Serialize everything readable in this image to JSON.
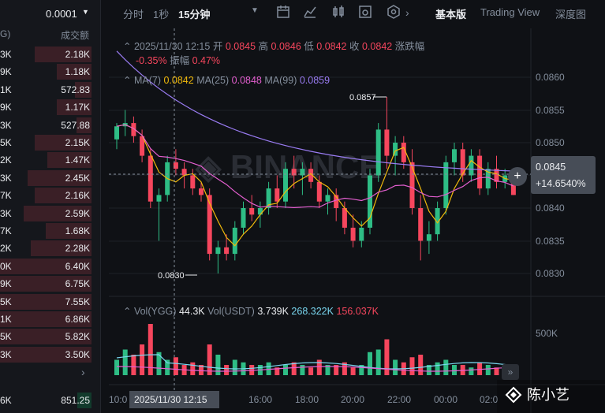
{
  "orderbook": {
    "precision": "0.0001",
    "col_price_partial": "G)",
    "col_volume": "成交额",
    "rows": [
      {
        "p": "3K",
        "q": "2.18K",
        "w": 0.62
      },
      {
        "p": "9K",
        "q": "1.18K",
        "w": 0.38
      },
      {
        "p": "1K",
        "q": "572.83",
        "w": 0.18
      },
      {
        "p": "9K",
        "q": "1.17K",
        "w": 0.38
      },
      {
        "p": "3K",
        "q": "527.88",
        "w": 0.16
      },
      {
        "p": "5K",
        "q": "2.15K",
        "w": 0.62
      },
      {
        "p": "2K",
        "q": "1.47K",
        "w": 0.48
      },
      {
        "p": "3K",
        "q": "2.45K",
        "w": 0.7
      },
      {
        "p": "7K",
        "q": "2.16K",
        "w": 0.62
      },
      {
        "p": "3K",
        "q": "2.59K",
        "w": 0.74
      },
      {
        "p": "7K",
        "q": "1.68K",
        "w": 0.5
      },
      {
        "p": "2K",
        "q": "2.28K",
        "w": 0.66
      },
      {
        "p": "0K",
        "q": "6.40K",
        "w": 1.0
      },
      {
        "p": "9K",
        "q": "6.75K",
        "w": 1.0
      },
      {
        "p": "5K",
        "q": "7.55K",
        "w": 1.0
      },
      {
        "p": "1K",
        "q": "6.86K",
        "w": 1.0
      },
      {
        "p": "5K",
        "q": "5.82K",
        "w": 1.0
      },
      {
        "p": "3K",
        "q": "3.50K",
        "w": 1.0
      }
    ],
    "more_icon": "chevron-right-icon",
    "last": {
      "p": "6K",
      "q": "851.25"
    }
  },
  "toolbar": {
    "time_label": "分时",
    "one_sec": "1秒",
    "interval": "15分钟",
    "tab_basic": "基本版",
    "tab_tv": "Trading View",
    "tab_depth": "深度图"
  },
  "legend": {
    "datetime": "2025/11/30 12:15",
    "open_label": "开",
    "open": "0.0845",
    "high_label": "高",
    "high": "0.0846",
    "low_label": "低",
    "low": "0.0842",
    "close_label": "收",
    "close": "0.0842",
    "change_label": "涨跌幅",
    "change": "-0.35%",
    "amp_label": "振幅",
    "amp": "0.47%",
    "ma7_label": "MA(7)",
    "ma7": "0.0842",
    "ma25_label": "MA(25)",
    "ma25": "0.0848",
    "ma99_label": "MA(99)",
    "ma99": "0.0859"
  },
  "vol_legend": {
    "vol_label": "Vol(YGG)",
    "vol": "44.3K",
    "vol_usdt_label": "Vol(USDT)",
    "vol_usdt": "3.739K",
    "v2": "268.322K",
    "v3": "156.037K"
  },
  "price_axis": [
    "0.0860",
    "0.0855",
    "0.0850",
    "0.0845",
    "0.0840",
    "0.0835",
    "0.0830"
  ],
  "vol_axis": "500K",
  "time_axis": [
    "10:0",
    "16:00",
    "18:00",
    "20:00",
    "22:00",
    "00:00",
    "02:0"
  ],
  "time_cursor": "2025/11/30 12:15",
  "current_price": "0.0845",
  "current_pct": "+14.6540%",
  "high_marker": "0.0857",
  "low_marker": "0.0830",
  "watermark_text": "陈小艺",
  "colors": {
    "up": "#2ebd85",
    "down": "#f6465d",
    "ma7": "#f0b90b",
    "ma25": "#e45fd0",
    "ma99": "#9a7cf3"
  }
}
